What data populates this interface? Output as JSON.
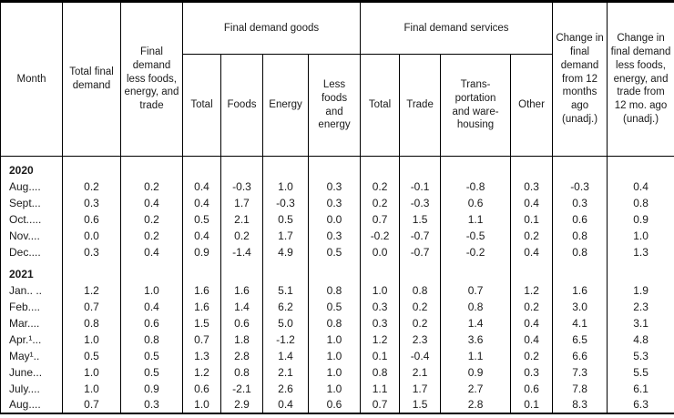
{
  "table": {
    "header": {
      "month": "Month",
      "total_final_demand": "Total final demand",
      "less_fet": "Final demand less foods, energy, and trade",
      "goods_group": "Final demand goods",
      "goods_cols": [
        "Total",
        "Foods",
        "Energy",
        "Less foods and energy"
      ],
      "services_group": "Final demand services",
      "services_cols": [
        "Total",
        "Trade",
        "Trans-\nportation\nand ware-\nhousing",
        "Other"
      ],
      "change_12mo": "Change in final demand from 12 months ago (unadj.)",
      "change_less_fet": "Change in final demand less foods, energy, and trade from 12 mo. ago (unadj.)"
    },
    "groups": [
      {
        "year": "2020",
        "rows": [
          {
            "month": "Aug....",
            "values": [
              "0.2",
              "0.2",
              "0.4",
              "-0.3",
              "1.0",
              "0.3",
              "0.2",
              "-0.1",
              "-0.8",
              "0.3",
              "-0.3",
              "0.4"
            ]
          },
          {
            "month": "Sept...",
            "values": [
              "0.3",
              "0.4",
              "0.4",
              "1.7",
              "-0.3",
              "0.3",
              "0.2",
              "-0.3",
              "0.6",
              "0.4",
              "0.3",
              "0.8"
            ]
          },
          {
            "month": "Oct.....",
            "values": [
              "0.6",
              "0.2",
              "0.5",
              "2.1",
              "0.5",
              "0.0",
              "0.7",
              "1.5",
              "1.1",
              "0.1",
              "0.6",
              "0.9"
            ]
          },
          {
            "month": "Nov....",
            "values": [
              "0.0",
              "0.2",
              "0.4",
              "0.2",
              "1.7",
              "0.3",
              "-0.2",
              "-0.7",
              "-0.5",
              "0.2",
              "0.8",
              "1.0"
            ]
          },
          {
            "month": "Dec....",
            "values": [
              "0.3",
              "0.4",
              "0.9",
              "-1.4",
              "4.9",
              "0.5",
              "0.0",
              "-0.7",
              "-0.2",
              "0.4",
              "0.8",
              "1.3"
            ]
          }
        ]
      },
      {
        "year": "2021",
        "rows": [
          {
            "month": "Jan.. ..",
            "values": [
              "1.2",
              "1.0",
              "1.6",
              "1.6",
              "5.1",
              "0.8",
              "1.0",
              "0.8",
              "0.7",
              "1.2",
              "1.6",
              "1.9"
            ]
          },
          {
            "month": "Feb....",
            "values": [
              "0.7",
              "0.4",
              "1.6",
              "1.4",
              "6.2",
              "0.5",
              "0.3",
              "0.2",
              "0.8",
              "0.2",
              "3.0",
              "2.3"
            ]
          },
          {
            "month": "Mar....",
            "values": [
              "0.8",
              "0.6",
              "1.5",
              "0.6",
              "5.0",
              "0.8",
              "0.3",
              "0.2",
              "1.4",
              "0.4",
              "4.1",
              "3.1"
            ]
          },
          {
            "month": "Apr.¹...",
            "values": [
              "1.0",
              "0.8",
              "0.7",
              "1.8",
              "-1.2",
              "1.0",
              "1.2",
              "2.3",
              "3.6",
              "0.4",
              "6.5",
              "4.8"
            ]
          },
          {
            "month": "May¹..",
            "values": [
              "0.5",
              "0.5",
              "1.3",
              "2.8",
              "1.4",
              "1.0",
              "0.1",
              "-0.4",
              "1.1",
              "0.2",
              "6.6",
              "5.3"
            ]
          },
          {
            "month": "June...",
            "values": [
              "1.0",
              "0.5",
              "1.2",
              "0.8",
              "2.1",
              "1.0",
              "0.8",
              "2.1",
              "0.9",
              "0.3",
              "7.3",
              "5.5"
            ]
          },
          {
            "month": "July....",
            "values": [
              "1.0",
              "0.9",
              "0.6",
              "-2.1",
              "2.6",
              "1.0",
              "1.1",
              "1.7",
              "2.7",
              "0.6",
              "7.8",
              "6.1"
            ]
          },
          {
            "month": "Aug....",
            "values": [
              "0.7",
              "0.3",
              "1.0",
              "2.9",
              "0.4",
              "0.6",
              "0.7",
              "1.5",
              "2.8",
              "0.1",
              "8.3",
              "6.3"
            ]
          }
        ]
      }
    ]
  }
}
